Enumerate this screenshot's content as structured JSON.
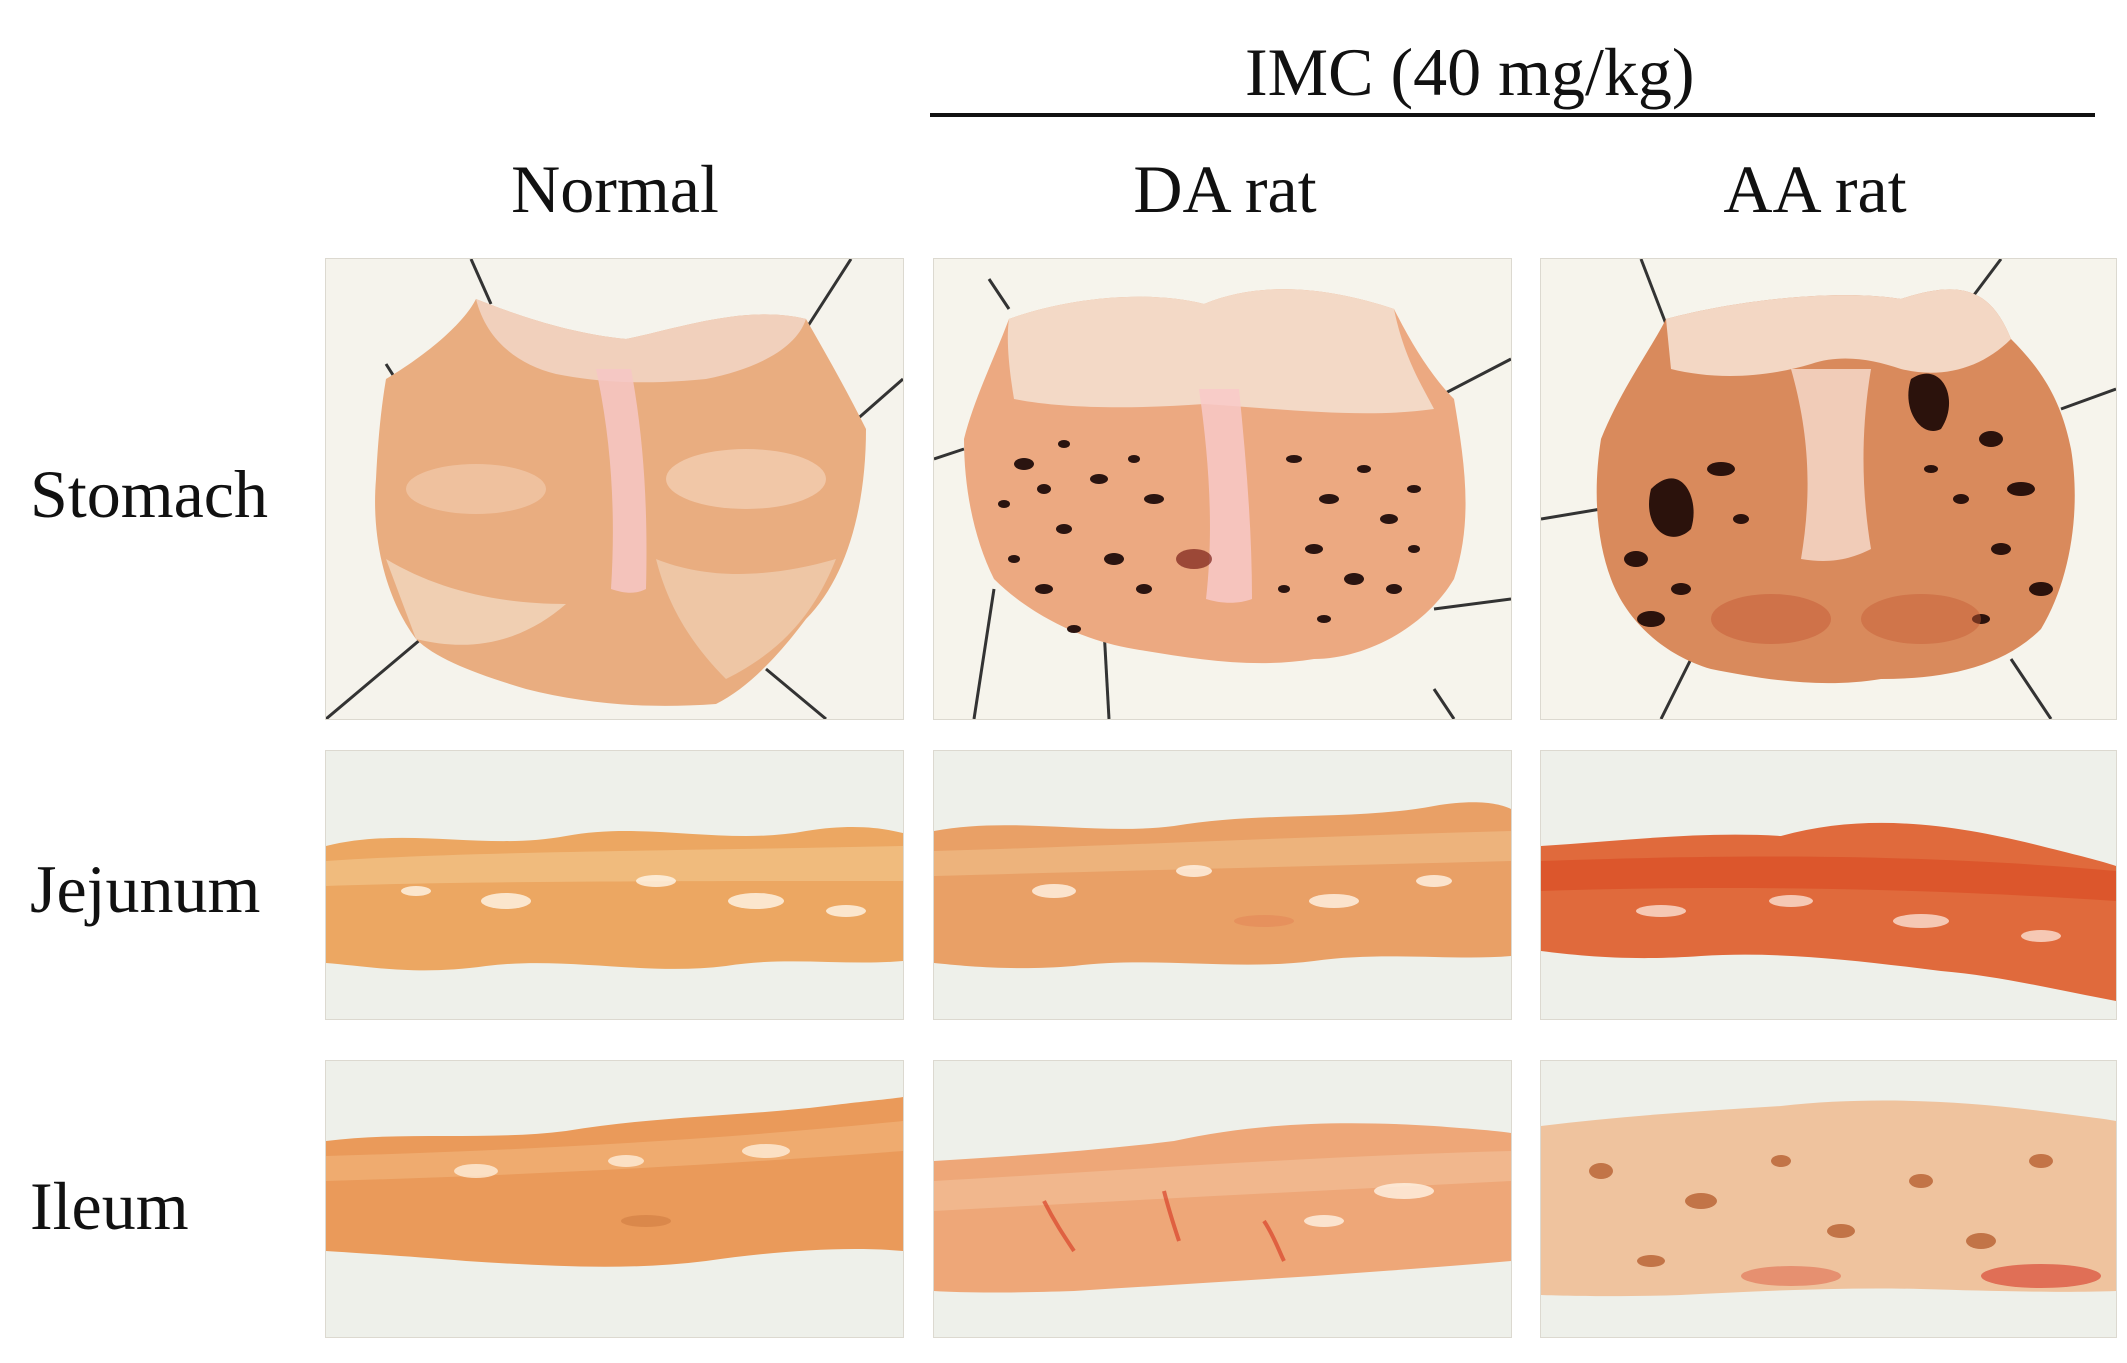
{
  "figure": {
    "group_label": "IMC (40 mg/kg)",
    "columns": [
      "Normal",
      "DA rat",
      "AA rat"
    ],
    "rows": [
      "Stomach",
      "Jejunum",
      "Ileum"
    ],
    "panels": [
      {
        "row": "Stomach",
        "column": "Normal",
        "image": "stomach-normal-photo"
      },
      {
        "row": "Stomach",
        "column": "DA rat",
        "image": "stomach-da-rat-photo"
      },
      {
        "row": "Stomach",
        "column": "AA rat",
        "image": "stomach-aa-rat-photo"
      },
      {
        "row": "Jejunum",
        "column": "Normal",
        "image": "jejunum-normal-photo"
      },
      {
        "row": "Jejunum",
        "column": "DA rat",
        "image": "jejunum-da-rat-photo"
      },
      {
        "row": "Jejunum",
        "column": "AA rat",
        "image": "jejunum-aa-rat-photo"
      },
      {
        "row": "Ileum",
        "column": "Normal",
        "image": "ileum-normal-photo"
      },
      {
        "row": "Ileum",
        "column": "DA rat",
        "image": "ileum-da-rat-photo"
      },
      {
        "row": "Ileum",
        "column": "AA rat",
        "image": "ileum-aa-rat-photo"
      }
    ]
  }
}
